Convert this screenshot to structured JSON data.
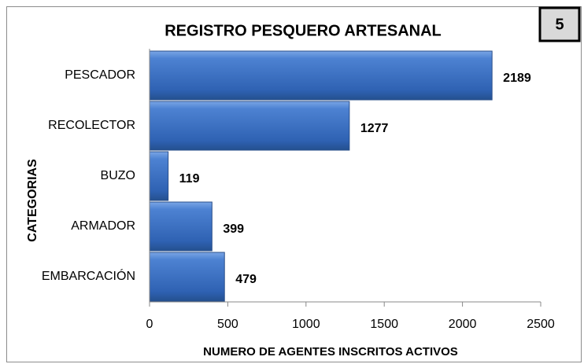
{
  "badge": "5",
  "chart_data": {
    "type": "hbar",
    "title": "REGISTRO PESQUERO ARTESANAL",
    "x_label": "NUMERO DE AGENTES INSCRITOS ACTIVOS",
    "y_label": "CATEGORIAS",
    "categories": [
      "PESCADOR",
      "RECOLECTOR",
      "BUZO",
      "ARMADOR",
      "EMBARCACIÓN"
    ],
    "values": [
      2189,
      1277,
      119,
      399,
      479
    ],
    "color": "#3a6fc0",
    "xlim": [
      0,
      2500
    ],
    "xticks": [
      0,
      500,
      1000,
      1500,
      2000,
      2500
    ],
    "grid": false
  }
}
